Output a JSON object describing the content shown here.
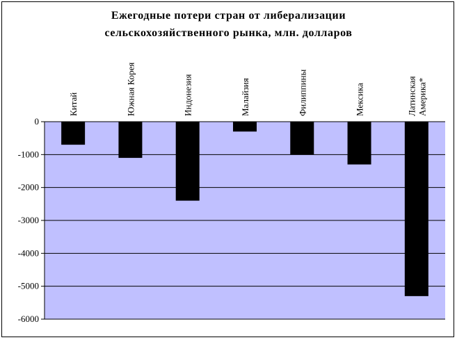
{
  "chart_data": {
    "type": "bar",
    "title_lines": [
      "Ежегодные потери стран от либерализации",
      "сельскохозяйственного рынка, млн. долларов"
    ],
    "categories": [
      [
        "Китай"
      ],
      [
        "Южная Корея"
      ],
      [
        "Индонезия"
      ],
      [
        "Малайзия"
      ],
      [
        "Филиппины"
      ],
      [
        "Мексика"
      ],
      [
        "Латинская",
        "Америка*"
      ]
    ],
    "values": [
      -700,
      -1100,
      -2400,
      -300,
      -1000,
      -1300,
      -5300
    ],
    "ylim": [
      -6000,
      0
    ],
    "yticks": [
      0,
      -1000,
      -2000,
      -3000,
      -4000,
      -5000,
      -6000
    ],
    "grid": true,
    "colors": {
      "plot_bg": "#c0c0ff",
      "bar": "#000000",
      "grid": "#000000"
    }
  }
}
